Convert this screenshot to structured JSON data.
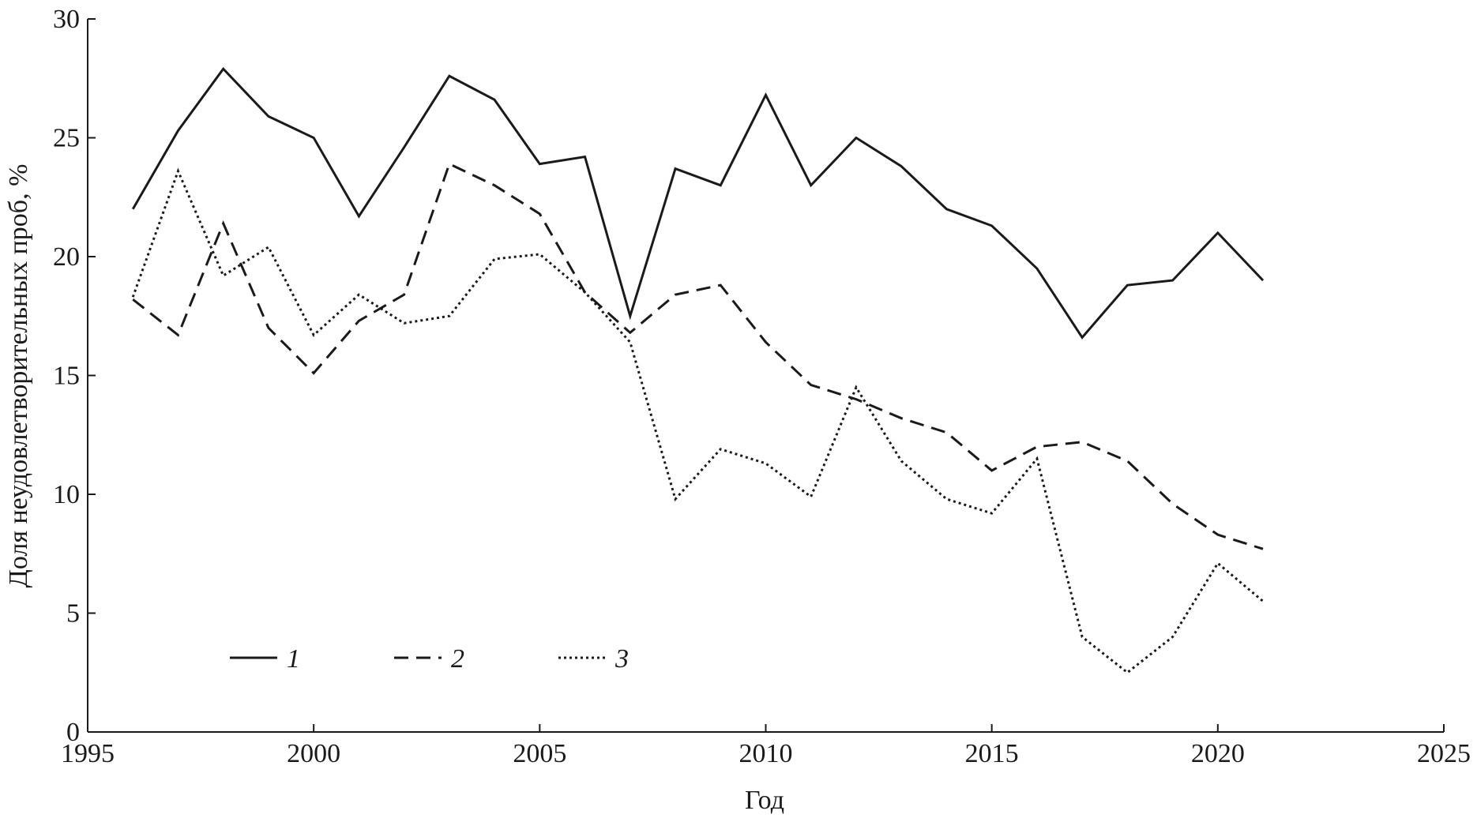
{
  "chart_data": {
    "type": "line",
    "xlabel": "Год",
    "ylabel": "Доля неудовлетворительных проб, %",
    "x": [
      1996,
      1997,
      1998,
      1999,
      2000,
      2001,
      2002,
      2003,
      2004,
      2005,
      2006,
      2007,
      2008,
      2009,
      2010,
      2011,
      2012,
      2013,
      2014,
      2015,
      2016,
      2017,
      2018,
      2019,
      2020,
      2021
    ],
    "series": [
      {
        "name": "1",
        "color": "#1a1a1a",
        "style": "solid",
        "values": [
          22.0,
          25.3,
          27.9,
          25.9,
          25.0,
          21.7,
          24.6,
          27.6,
          26.6,
          23.9,
          24.2,
          17.5,
          23.7,
          23.0,
          26.8,
          23.0,
          25.0,
          23.8,
          22.0,
          21.3,
          19.5,
          16.6,
          18.8,
          19.0,
          21.0,
          19.0
        ]
      },
      {
        "name": "2",
        "color": "#1a1a1a",
        "style": "dashed",
        "values": [
          18.2,
          16.7,
          21.4,
          17.0,
          15.1,
          17.3,
          18.4,
          23.9,
          23.0,
          21.8,
          18.5,
          16.8,
          18.4,
          18.8,
          16.4,
          14.6,
          14.0,
          13.2,
          12.6,
          11.0,
          12.0,
          12.2,
          11.4,
          9.6,
          8.3,
          7.7
        ]
      },
      {
        "name": "3",
        "color": "#1a1a1a",
        "style": "dotted",
        "values": [
          18.3,
          23.6,
          19.2,
          20.4,
          16.7,
          18.4,
          17.2,
          17.5,
          19.9,
          20.1,
          18.5,
          16.4,
          9.8,
          11.9,
          11.3,
          9.9,
          14.5,
          11.4,
          9.8,
          9.2,
          11.5,
          4.0,
          2.5,
          4.0,
          7.1,
          5.5
        ]
      }
    ],
    "xlim": [
      1995,
      2025
    ],
    "xticks": [
      1995,
      2000,
      2005,
      2010,
      2015,
      2020,
      2025
    ],
    "ylim": [
      0,
      30
    ],
    "yticks": [
      0,
      5,
      10,
      15,
      20,
      25,
      30
    ],
    "grid": false,
    "legend": "lower left"
  }
}
